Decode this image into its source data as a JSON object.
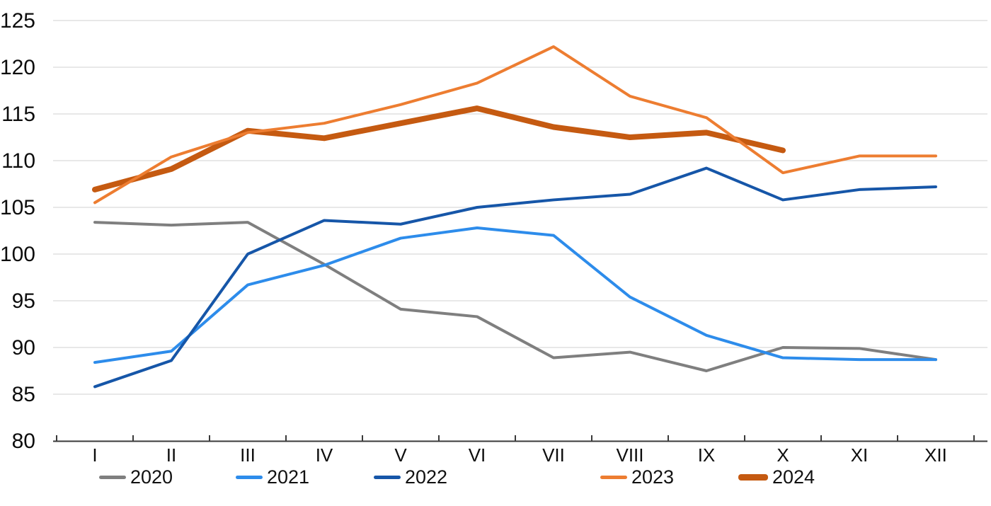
{
  "chart_data": {
    "type": "line",
    "title": "",
    "xlabel": "",
    "ylabel": "",
    "categories": [
      "I",
      "II",
      "III",
      "IV",
      "V",
      "VI",
      "VII",
      "VIII",
      "IX",
      "X",
      "XI",
      "XII"
    ],
    "series": [
      {
        "name": "2020",
        "color": "#7F7F7F",
        "width": 4,
        "values": [
          103.4,
          103.1,
          103.4,
          98.9,
          94.1,
          93.3,
          88.9,
          89.5,
          87.5,
          90.0,
          89.9,
          88.7
        ]
      },
      {
        "name": "2021",
        "color": "#2D8CEB",
        "width": 4,
        "values": [
          88.4,
          89.6,
          96.7,
          98.8,
          101.7,
          102.8,
          102.0,
          95.4,
          91.3,
          88.9,
          88.7,
          88.7
        ]
      },
      {
        "name": "2022",
        "color": "#1656A8",
        "width": 4,
        "values": [
          85.8,
          88.6,
          100.0,
          103.6,
          103.2,
          105.0,
          105.8,
          106.4,
          109.2,
          105.8,
          106.9,
          107.2
        ]
      },
      {
        "name": "2023",
        "color": "#ED7D31",
        "width": 4,
        "values": [
          105.5,
          110.4,
          113.0,
          114.0,
          116.0,
          118.3,
          122.2,
          116.9,
          114.6,
          108.7,
          110.5,
          110.5
        ]
      },
      {
        "name": "2024",
        "color": "#C55A11",
        "width": 8,
        "values": [
          106.9,
          109.1,
          113.2,
          112.4,
          114.0,
          115.6,
          113.6,
          112.5,
          113.0,
          111.1,
          null,
          null
        ]
      }
    ],
    "ylim": [
      80,
      125
    ],
    "y_ticks": [
      80,
      85,
      90,
      95,
      100,
      105,
      110,
      115,
      120,
      125
    ],
    "grid": true,
    "legend_position": "bottom"
  },
  "colors": {
    "background": "#FFFFFF",
    "gridline": "#D9D9D9",
    "axis": "#3A3A3A",
    "tick_label": "#0D0D0D"
  }
}
